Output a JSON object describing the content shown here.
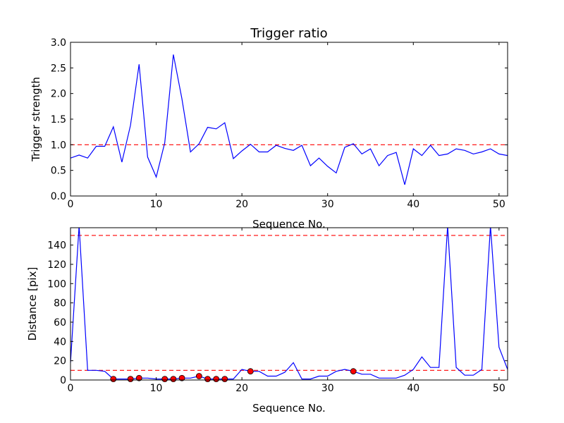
{
  "figure": {
    "title": "Trigger ratio"
  },
  "chart_data": [
    {
      "type": "line",
      "title": "Trigger ratio",
      "xlabel": "Sequence No.",
      "ylabel": "Trigger strength",
      "xlim": [
        0,
        51
      ],
      "ylim": [
        0,
        3.0
      ],
      "xticks": [
        0,
        10,
        20,
        30,
        40,
        50
      ],
      "yticks": [
        0.0,
        0.5,
        1.0,
        1.5,
        2.0,
        2.5,
        3.0
      ],
      "ytick_labels": [
        "0.0",
        "0.5",
        "1.0",
        "1.5",
        "2.0",
        "2.5",
        "3.0"
      ],
      "grid": false,
      "series": [
        {
          "color": "#0000ff",
          "x": [
            0,
            1,
            2,
            3,
            4,
            5,
            6,
            7,
            8,
            9,
            10,
            11,
            12,
            13,
            14,
            15,
            16,
            17,
            18,
            19,
            20,
            21,
            22,
            23,
            24,
            25,
            26,
            27,
            28,
            29,
            30,
            31,
            32,
            33,
            34,
            35,
            36,
            37,
            38,
            39,
            40,
            41,
            42,
            43,
            44,
            45,
            46,
            47,
            48,
            49,
            50,
            51
          ],
          "y": [
            0.74,
            0.8,
            0.74,
            0.97,
            0.97,
            1.35,
            0.66,
            1.38,
            2.57,
            0.76,
            0.37,
            1.04,
            2.76,
            1.9,
            0.86,
            1.02,
            1.34,
            1.31,
            1.43,
            0.73,
            0.88,
            1.01,
            0.86,
            0.86,
            0.99,
            0.93,
            0.89,
            0.99,
            0.59,
            0.74,
            0.58,
            0.45,
            0.95,
            1.02,
            0.82,
            0.92,
            0.59,
            0.79,
            0.85,
            0.22,
            0.92,
            0.79,
            0.99,
            0.79,
            0.82,
            0.92,
            0.89,
            0.82,
            0.86,
            0.92,
            0.82,
            0.79
          ]
        }
      ],
      "reference_lines": [
        {
          "y": 1.0,
          "color": "#ff0000",
          "style": "dashed"
        }
      ]
    },
    {
      "type": "line",
      "title": "",
      "xlabel": "Sequence No.",
      "ylabel": "Distance [pix]",
      "xlim": [
        0,
        51
      ],
      "ylim": [
        0,
        158
      ],
      "xticks": [
        0,
        10,
        20,
        30,
        40,
        50
      ],
      "yticks": [
        0,
        20,
        40,
        60,
        80,
        100,
        120,
        140
      ],
      "ytick_labels": [
        "0",
        "20",
        "40",
        "60",
        "80",
        "100",
        "120",
        "140"
      ],
      "grid": false,
      "series": [
        {
          "color": "#0000ff",
          "x": [
            0,
            1,
            2,
            3,
            4,
            5,
            6,
            7,
            8,
            9,
            10,
            11,
            12,
            13,
            14,
            15,
            16,
            17,
            18,
            19,
            20,
            21,
            22,
            23,
            24,
            25,
            26,
            27,
            28,
            29,
            30,
            31,
            32,
            33,
            34,
            35,
            36,
            37,
            38,
            39,
            40,
            41,
            42,
            43,
            44,
            45,
            46,
            47,
            48,
            49,
            50,
            51
          ],
          "y": [
            18,
            160,
            10,
            10,
            9,
            1,
            1,
            1,
            2,
            2,
            1,
            1,
            1,
            2,
            2,
            4,
            1,
            1,
            1,
            1,
            11,
            9,
            9,
            4,
            4,
            8,
            18,
            1,
            1,
            4,
            4,
            9,
            11,
            9,
            6,
            6,
            2,
            2,
            2,
            5,
            11,
            24,
            13,
            13,
            160,
            13,
            5,
            5,
            11,
            160,
            34,
            11
          ]
        }
      ],
      "markers": {
        "color": "#ff0000",
        "x": [
          5,
          7,
          8,
          11,
          12,
          13,
          15,
          16,
          17,
          18,
          21,
          33
        ],
        "y": [
          1,
          1,
          2,
          1,
          1,
          2,
          4,
          1,
          1,
          1,
          9,
          9
        ]
      },
      "reference_lines": [
        {
          "y": 150,
          "color": "#ff0000",
          "style": "dashed"
        },
        {
          "y": 10,
          "color": "#ff0000",
          "style": "dashed"
        }
      ]
    }
  ]
}
